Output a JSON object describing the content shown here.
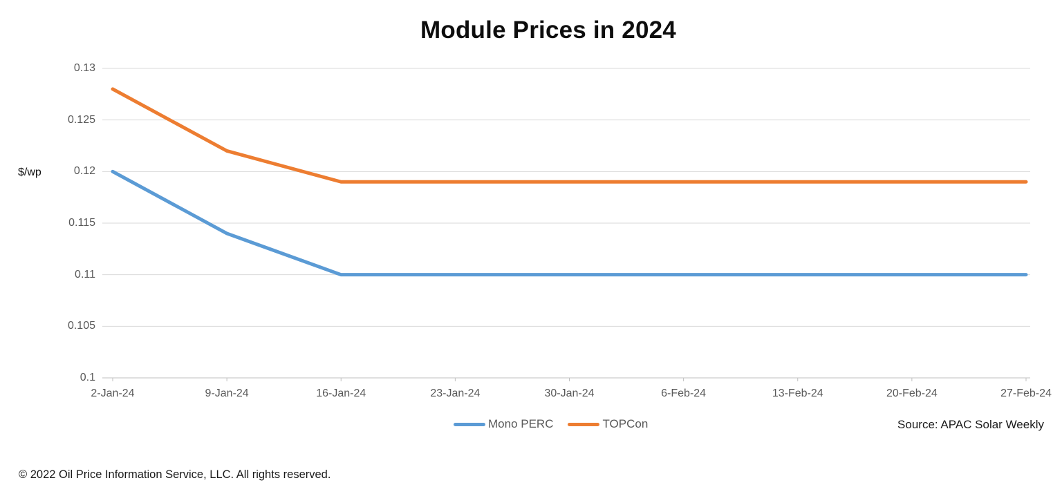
{
  "source_note": "Source: APAC Solar Weekly",
  "copyright": "© 2022 Oil Price Information Service, LLC. All rights reserved.",
  "colors": {
    "gridline": "#D9D9D9",
    "axis_line": "#BFBFBF",
    "axis_text": "#595959",
    "title_text": "#0d0d0d",
    "mono_perc_blue": "#5B9BD5",
    "topcon_orange": "#ED7D31"
  },
  "chart_data": {
    "type": "line",
    "title": "Module Prices in 2024",
    "xlabel": "",
    "ylabel": "$/wp",
    "categories": [
      "2-Jan-24",
      "9-Jan-24",
      "16-Jan-24",
      "23-Jan-24",
      "30-Jan-24",
      "6-Feb-24",
      "13-Feb-24",
      "20-Feb-24",
      "27-Feb-24"
    ],
    "series": [
      {
        "name": "Mono PERC",
        "color": "#5B9BD5",
        "values": [
          0.12,
          0.114,
          0.11,
          0.11,
          0.11,
          0.11,
          0.11,
          0.11,
          0.11
        ]
      },
      {
        "name": "TOPCon",
        "color": "#ED7D31",
        "values": [
          0.128,
          0.122,
          0.119,
          0.119,
          0.119,
          0.119,
          0.119,
          0.119,
          0.119
        ]
      }
    ],
    "ylim": [
      0.1,
      0.13
    ],
    "yticks": [
      0.13,
      0.125,
      0.12,
      0.115,
      0.11,
      0.105,
      0.1
    ],
    "ytick_labels": [
      "0.13",
      "0.125",
      "0.12",
      "0.115",
      "0.11",
      "0.105",
      "0.1"
    ],
    "grid": true,
    "legend_position": "bottom-center"
  }
}
